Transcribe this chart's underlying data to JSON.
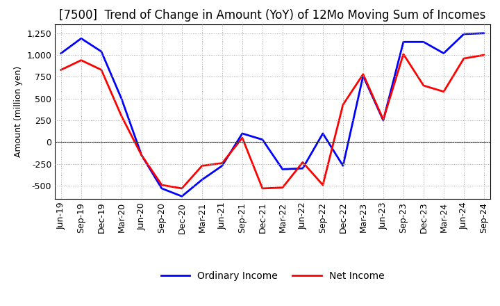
{
  "title": "[7500]  Trend of Change in Amount (YoY) of 12Mo Moving Sum of Incomes",
  "ylabel": "Amount (million yen)",
  "x_labels": [
    "Jun-19",
    "Sep-19",
    "Dec-19",
    "Mar-20",
    "Jun-20",
    "Sep-20",
    "Dec-20",
    "Mar-21",
    "Jun-21",
    "Sep-21",
    "Dec-21",
    "Mar-22",
    "Jun-22",
    "Sep-22",
    "Dec-22",
    "Mar-23",
    "Jun-23",
    "Sep-23",
    "Dec-23",
    "Mar-24",
    "Jun-24",
    "Sep-24"
  ],
  "ordinary_income": [
    1020,
    1190,
    1040,
    500,
    -150,
    -530,
    -620,
    -430,
    -270,
    100,
    30,
    -310,
    -300,
    100,
    -270,
    760,
    250,
    1150,
    1150,
    1020,
    1240,
    1250
  ],
  "net_income": [
    830,
    940,
    830,
    300,
    -150,
    -490,
    -530,
    -270,
    -240,
    50,
    -530,
    -520,
    -230,
    -490,
    430,
    780,
    260,
    1010,
    650,
    580,
    960,
    1000
  ],
  "ordinary_color": "#0000ff",
  "net_color": "#ff0000",
  "background_color": "#ffffff",
  "grid_color": "#aaaaaa",
  "ylim": [
    -650,
    1350
  ],
  "yticks": [
    -500,
    -250,
    0,
    250,
    500,
    750,
    1000,
    1250
  ],
  "title_fontsize": 12,
  "axis_fontsize": 9,
  "legend_fontsize": 10,
  "line_width": 2.0
}
